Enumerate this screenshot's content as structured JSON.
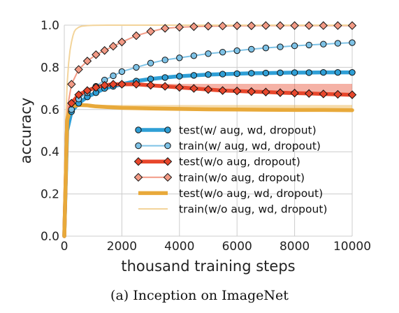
{
  "caption": "(a) Inception on ImageNet",
  "chart_data": {
    "type": "line",
    "title": "",
    "xlabel": "thousand training steps",
    "ylabel": "accuracy",
    "xlim": [
      0,
      10000
    ],
    "ylim": [
      0.0,
      1.0
    ],
    "xticks": [
      0,
      2000,
      4000,
      6000,
      8000,
      10000
    ],
    "yticks": [
      0.0,
      0.2,
      0.4,
      0.6,
      0.8,
      1.0
    ],
    "grid": true,
    "legend_position": "lower-right",
    "series": [
      {
        "name": "test(w/ aug, wd, dropout)",
        "color": "#2f9fd6",
        "marker": "circle",
        "style": "thick",
        "x": [
          0,
          100,
          250,
          500,
          800,
          1100,
          1400,
          1700,
          2000,
          2500,
          3000,
          3500,
          4000,
          4500,
          5000,
          5500,
          6000,
          6500,
          7000,
          7500,
          8000,
          8500,
          9000,
          9500,
          10000
        ],
        "y": [
          0.0,
          0.5,
          0.59,
          0.63,
          0.66,
          0.68,
          0.7,
          0.71,
          0.72,
          0.735,
          0.745,
          0.752,
          0.758,
          0.762,
          0.766,
          0.768,
          0.77,
          0.772,
          0.773,
          0.774,
          0.775,
          0.775,
          0.776,
          0.776,
          0.776
        ]
      },
      {
        "name": "train(w/ aug, wd, dropout)",
        "color": "#7ec2e6",
        "marker": "circle",
        "style": "thin",
        "x": [
          0,
          100,
          250,
          500,
          800,
          1100,
          1400,
          1700,
          2000,
          2500,
          3000,
          3500,
          4000,
          4500,
          5000,
          5500,
          6000,
          6500,
          7000,
          7500,
          8000,
          8500,
          9000,
          9500,
          10000
        ],
        "y": [
          0.0,
          0.5,
          0.6,
          0.65,
          0.68,
          0.71,
          0.74,
          0.76,
          0.78,
          0.8,
          0.82,
          0.835,
          0.845,
          0.855,
          0.865,
          0.872,
          0.879,
          0.886,
          0.892,
          0.897,
          0.902,
          0.906,
          0.91,
          0.914,
          0.917
        ]
      },
      {
        "name": "test(w/o aug, dropout)",
        "color": "#e8472c",
        "marker": "diamond",
        "style": "thick",
        "x": [
          0,
          100,
          250,
          500,
          800,
          1100,
          1400,
          1700,
          2000,
          2500,
          3000,
          3500,
          4000,
          4500,
          5000,
          5500,
          6000,
          6500,
          7000,
          7500,
          8000,
          8500,
          9000,
          9500,
          10000
        ],
        "y": [
          0.0,
          0.55,
          0.63,
          0.67,
          0.69,
          0.705,
          0.715,
          0.72,
          0.72,
          0.72,
          0.715,
          0.71,
          0.705,
          0.7,
          0.695,
          0.69,
          0.688,
          0.685,
          0.683,
          0.68,
          0.678,
          0.676,
          0.674,
          0.672,
          0.67
        ],
        "band_upper": [
          0.0,
          0.55,
          0.63,
          0.67,
          0.69,
          0.705,
          0.715,
          0.72,
          0.72,
          0.722,
          0.722,
          0.722,
          0.722,
          0.722,
          0.722,
          0.722,
          0.722,
          0.722,
          0.722,
          0.722,
          0.722,
          0.722,
          0.722,
          0.722,
          0.722
        ]
      },
      {
        "name": "train(w/o aug, dropout)",
        "color": "#f29a85",
        "marker": "diamond",
        "style": "thin",
        "x": [
          0,
          100,
          250,
          500,
          800,
          1100,
          1400,
          1700,
          2000,
          2500,
          3000,
          3500,
          4000,
          4500,
          5000,
          5500,
          6000,
          6500,
          7000,
          7500,
          8000,
          8500,
          9000,
          9500,
          10000
        ],
        "y": [
          0.0,
          0.6,
          0.72,
          0.79,
          0.83,
          0.86,
          0.88,
          0.9,
          0.92,
          0.95,
          0.97,
          0.985,
          0.99,
          0.993,
          0.995,
          0.996,
          0.997,
          0.997,
          0.998,
          0.998,
          0.998,
          0.998,
          0.998,
          0.998,
          0.998
        ]
      },
      {
        "name": "test(w/o aug, wd, dropout)",
        "color": "#e8a93a",
        "marker": "none",
        "style": "thick",
        "x": [
          0,
          100,
          200,
          300,
          500,
          800,
          1100,
          1500,
          2000,
          3000,
          4000,
          5000,
          6000,
          7000,
          8000,
          9000,
          10000
        ],
        "y": [
          0.0,
          0.55,
          0.6,
          0.615,
          0.622,
          0.62,
          0.615,
          0.612,
          0.608,
          0.605,
          0.603,
          0.601,
          0.6,
          0.599,
          0.598,
          0.598,
          0.597
        ],
        "band_upper": [
          0.0,
          0.55,
          0.6,
          0.615,
          0.622,
          0.622,
          0.622,
          0.622,
          0.622,
          0.622,
          0.622,
          0.622,
          0.622,
          0.622,
          0.622,
          0.622,
          0.622
        ]
      },
      {
        "name": "train(w/o aug, wd, dropout)",
        "color": "#f3d49a",
        "marker": "none",
        "style": "thin",
        "x": [
          0,
          50,
          100,
          150,
          200,
          250,
          300,
          350,
          400,
          500,
          600,
          800,
          1000,
          1500,
          2000,
          4000,
          6000,
          8000,
          10000
        ],
        "y": [
          0.0,
          0.55,
          0.72,
          0.82,
          0.88,
          0.92,
          0.95,
          0.97,
          0.98,
          0.99,
          0.995,
          0.998,
          0.999,
          1.0,
          1.0,
          1.0,
          1.0,
          1.0,
          1.0
        ]
      }
    ]
  }
}
